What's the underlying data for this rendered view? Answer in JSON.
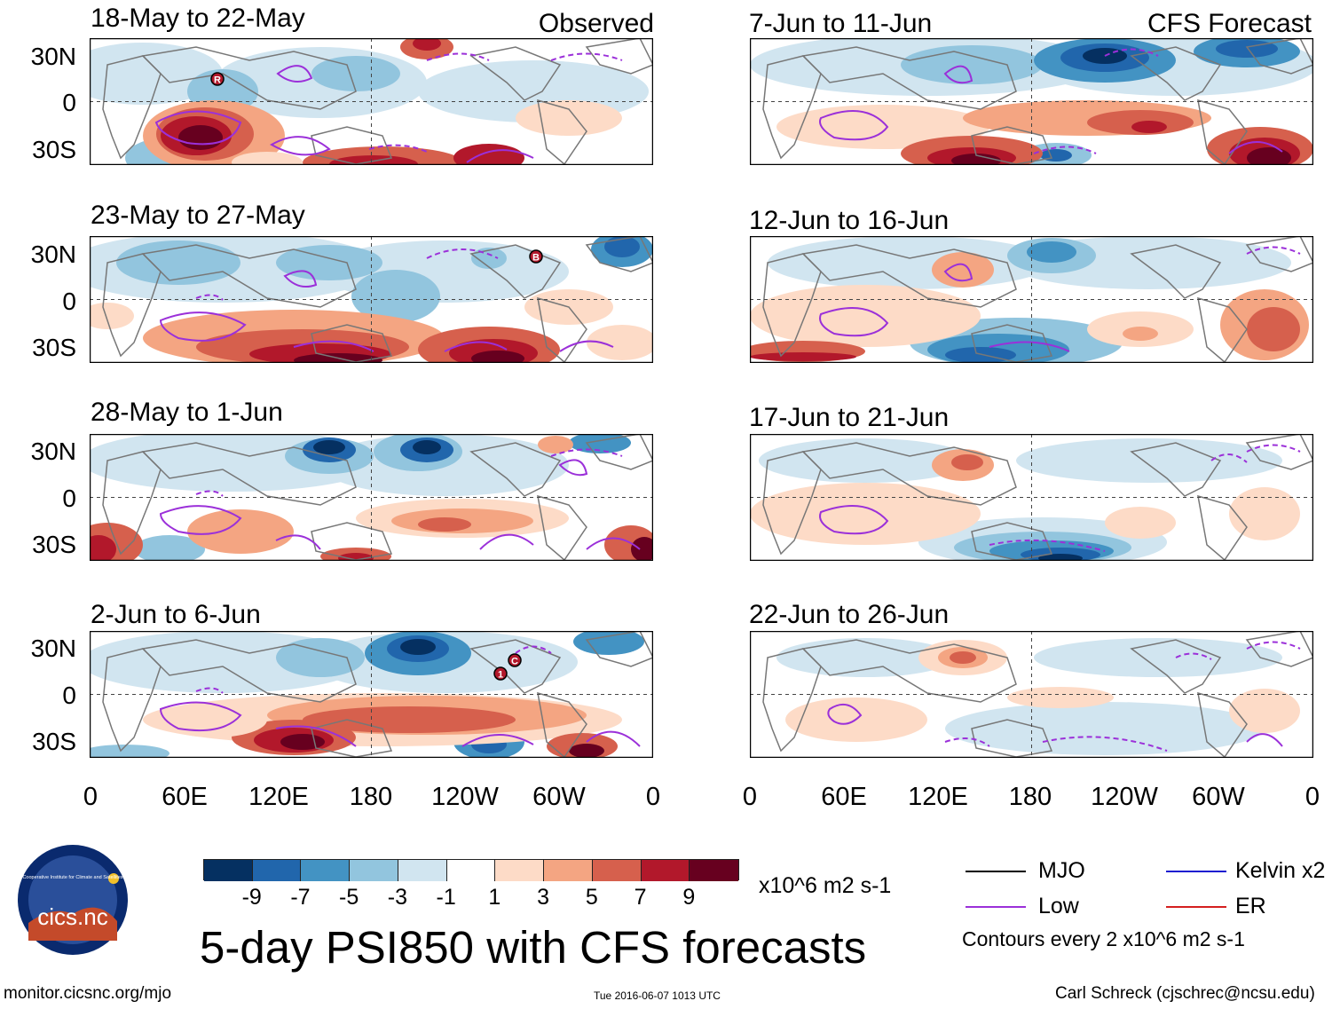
{
  "header": {
    "observed_label": "Observed",
    "forecast_label": "CFS Forecast"
  },
  "observed_panels": [
    {
      "title": "18-May to 22-May"
    },
    {
      "title": "23-May to 27-May"
    },
    {
      "title": "28-May to 1-Jun"
    },
    {
      "title": "2-Jun to 6-Jun"
    }
  ],
  "forecast_panels": [
    {
      "title": "7-Jun to 11-Jun"
    },
    {
      "title": "12-Jun to 16-Jun"
    },
    {
      "title": "17-Jun to 21-Jun"
    },
    {
      "title": "22-Jun to 26-Jun"
    }
  ],
  "lat_labels": [
    "30N",
    "0",
    "30S"
  ],
  "lon_labels": [
    "0",
    "60E",
    "120E",
    "180",
    "120W",
    "60W",
    "0"
  ],
  "storm_markers": {
    "panel1": [
      "R"
    ],
    "panel2": [
      "B"
    ],
    "panel4": [
      "1",
      "C"
    ]
  },
  "colorbar": {
    "tick_labels": [
      "-9",
      "-7",
      "-5",
      "-3",
      "-1",
      "1",
      "3",
      "5",
      "7",
      "9"
    ],
    "units": "x10^6 m2 s-1",
    "colors": [
      "#053061",
      "#2166ac",
      "#4393c3",
      "#92c5de",
      "#d1e5f0",
      "#ffffff",
      "#fddbc7",
      "#f4a582",
      "#d6604d",
      "#b2182b",
      "#67001f"
    ]
  },
  "legend": {
    "items": [
      {
        "label": "MJO",
        "color": "#000000"
      },
      {
        "label": "Kelvin x2",
        "color": "#1c1cd0"
      },
      {
        "label": "Low",
        "color": "#9b30d9"
      },
      {
        "label": "ER",
        "color": "#d42020"
      }
    ],
    "contours_note": "Contours every 2 x10^6 m2 s-1"
  },
  "main_title": "5-day PSI850 with CFS forecasts",
  "logo": {
    "text": "cics.nc",
    "ring_text": "Cooperative Institute for Climate and Satellites"
  },
  "footer": {
    "url": "monitor.cicsnc.org/mjo",
    "timestamp": "Tue 2016-06-07 1013 UTC",
    "author": "Carl Schreck (cjschrec@ncsu.edu)"
  }
}
